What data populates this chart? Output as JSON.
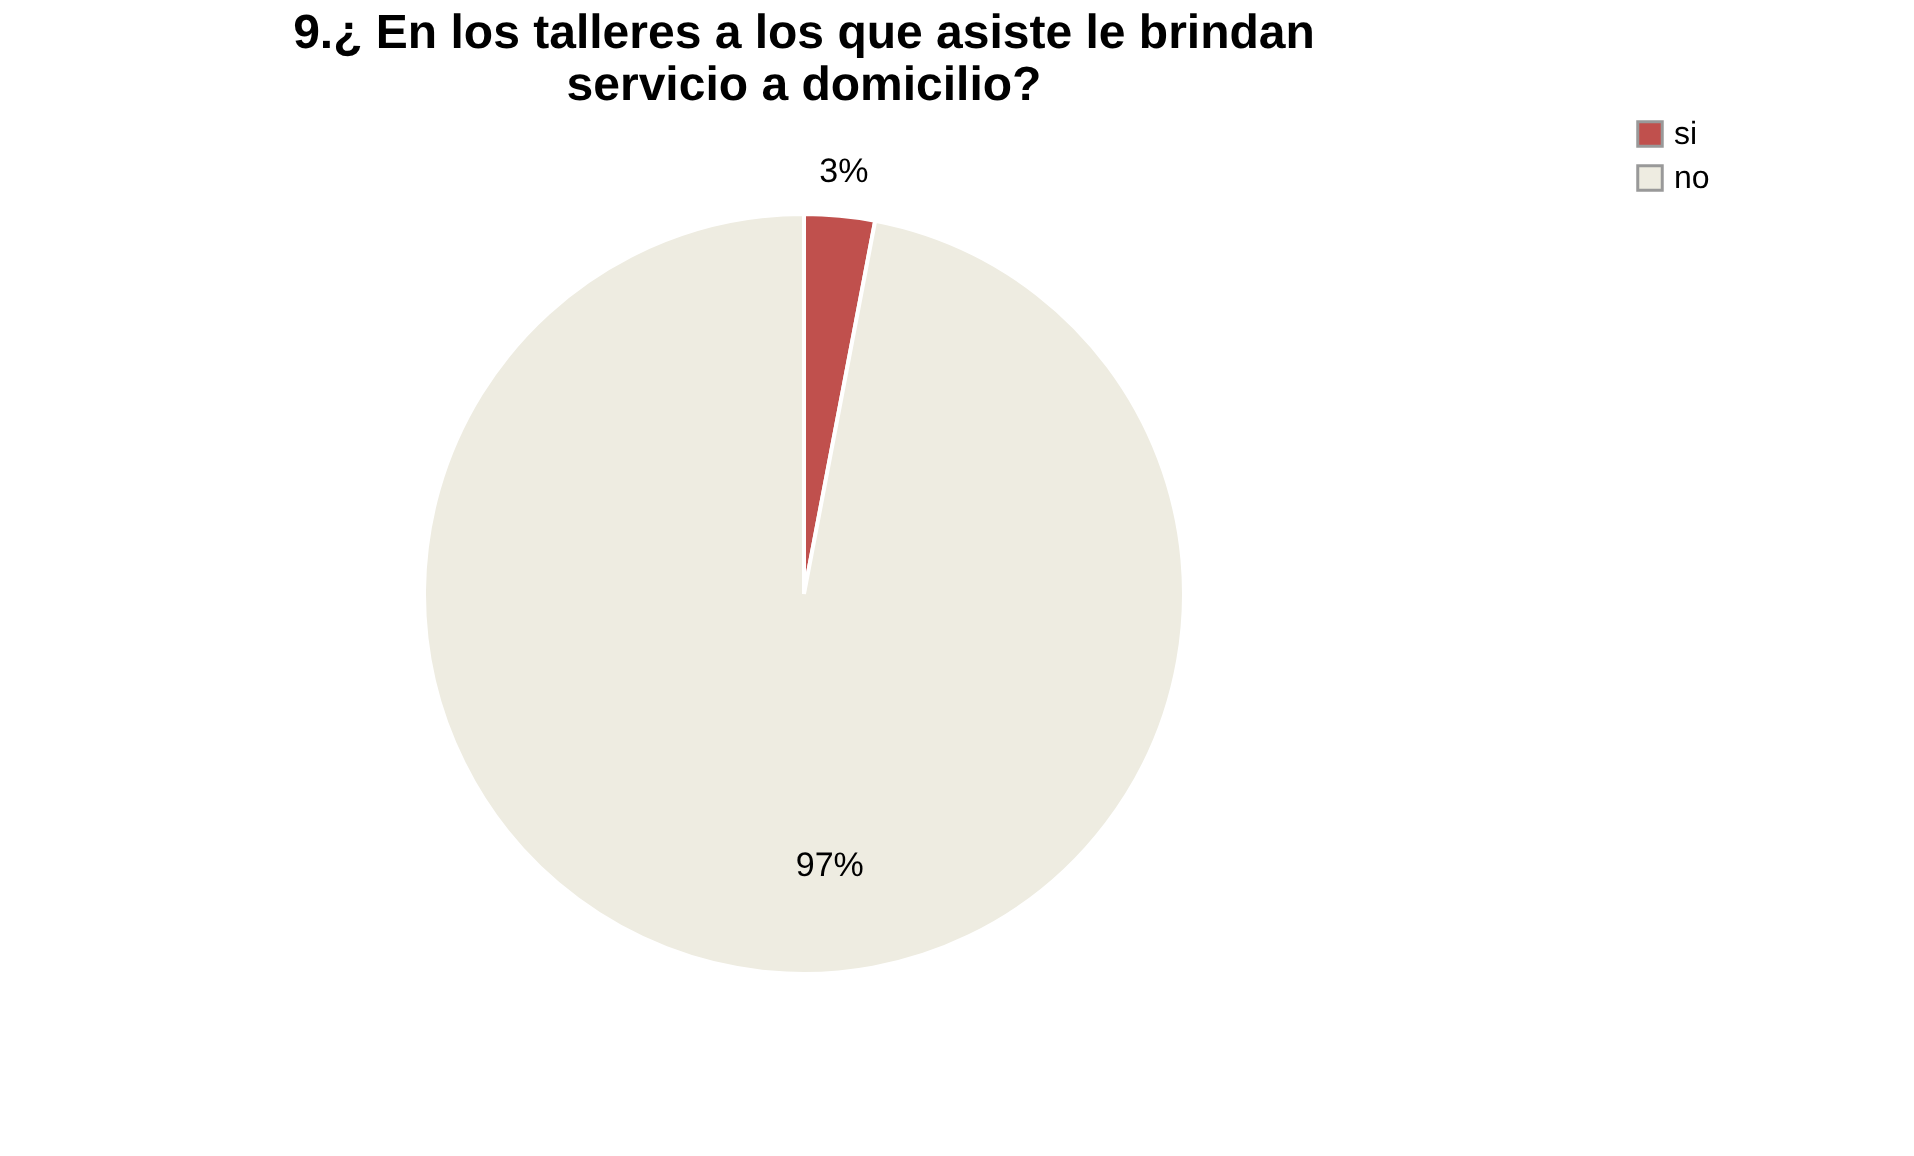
{
  "chart_data": {
    "type": "pie",
    "title": "9.¿ En los talleres a los que asiste le brindan servicio a domicilio?",
    "categories": [
      "si",
      "no"
    ],
    "values": [
      3,
      97
    ],
    "colors": [
      "#c0504d",
      "#eeece1"
    ],
    "value_labels": [
      "3%",
      "97%"
    ],
    "legend": "right"
  }
}
